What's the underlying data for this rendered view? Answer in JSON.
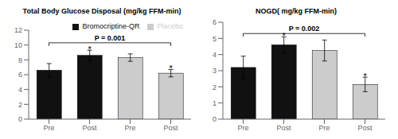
{
  "chart_data": [
    {
      "type": "bar",
      "title": "Total Body Glucose Disposal (mg/kg FFM-min)",
      "categories": [
        "Pre",
        "Post",
        "Pre",
        "Post"
      ],
      "series": [
        {
          "name": "Bromocriptine-QR",
          "color": "#111111",
          "values": [
            6.6,
            8.6,
            null,
            null
          ],
          "errors": [
            0.9,
            0.7,
            null,
            null
          ]
        },
        {
          "name": "Placebo",
          "color": "#cccccc",
          "values": [
            null,
            null,
            8.3,
            6.2
          ],
          "errors": [
            null,
            null,
            0.5,
            0.5
          ]
        }
      ],
      "ylim": [
        0,
        12
      ],
      "yticks": [
        0,
        2,
        4,
        6,
        8,
        10,
        12
      ],
      "legend": "upper right",
      "annotations": [
        {
          "text": "P = 0.001",
          "y": 10.3
        },
        {
          "text": "*",
          "series": "Bromocriptine-QR",
          "index": 1
        },
        {
          "text": "*",
          "series": "Placebo",
          "index": 3
        }
      ]
    },
    {
      "type": "bar",
      "title": "NOGD( mg/kg FFM-min)",
      "categories": [
        "Pre",
        "Post",
        "Pre",
        "Post"
      ],
      "series": [
        {
          "name": "Bromocriptine-QR",
          "color": "#111111",
          "values": [
            3.2,
            4.6,
            null,
            null
          ],
          "errors": [
            0.7,
            0.5,
            null,
            null
          ]
        },
        {
          "name": "Placebo",
          "color": "#cccccc",
          "values": [
            null,
            null,
            4.25,
            2.15
          ],
          "errors": [
            null,
            null,
            0.65,
            0.45
          ]
        }
      ],
      "ylim": [
        0,
        6
      ],
      "yticks": [
        0,
        1,
        2,
        3,
        4,
        5,
        6
      ],
      "annotations": [
        {
          "text": "P = 0.002",
          "y": 5.3
        },
        {
          "text": "*",
          "series": "Bromocriptine-QR",
          "index": 1
        },
        {
          "text": "*",
          "series": "Placebo",
          "index": 3
        }
      ]
    }
  ]
}
